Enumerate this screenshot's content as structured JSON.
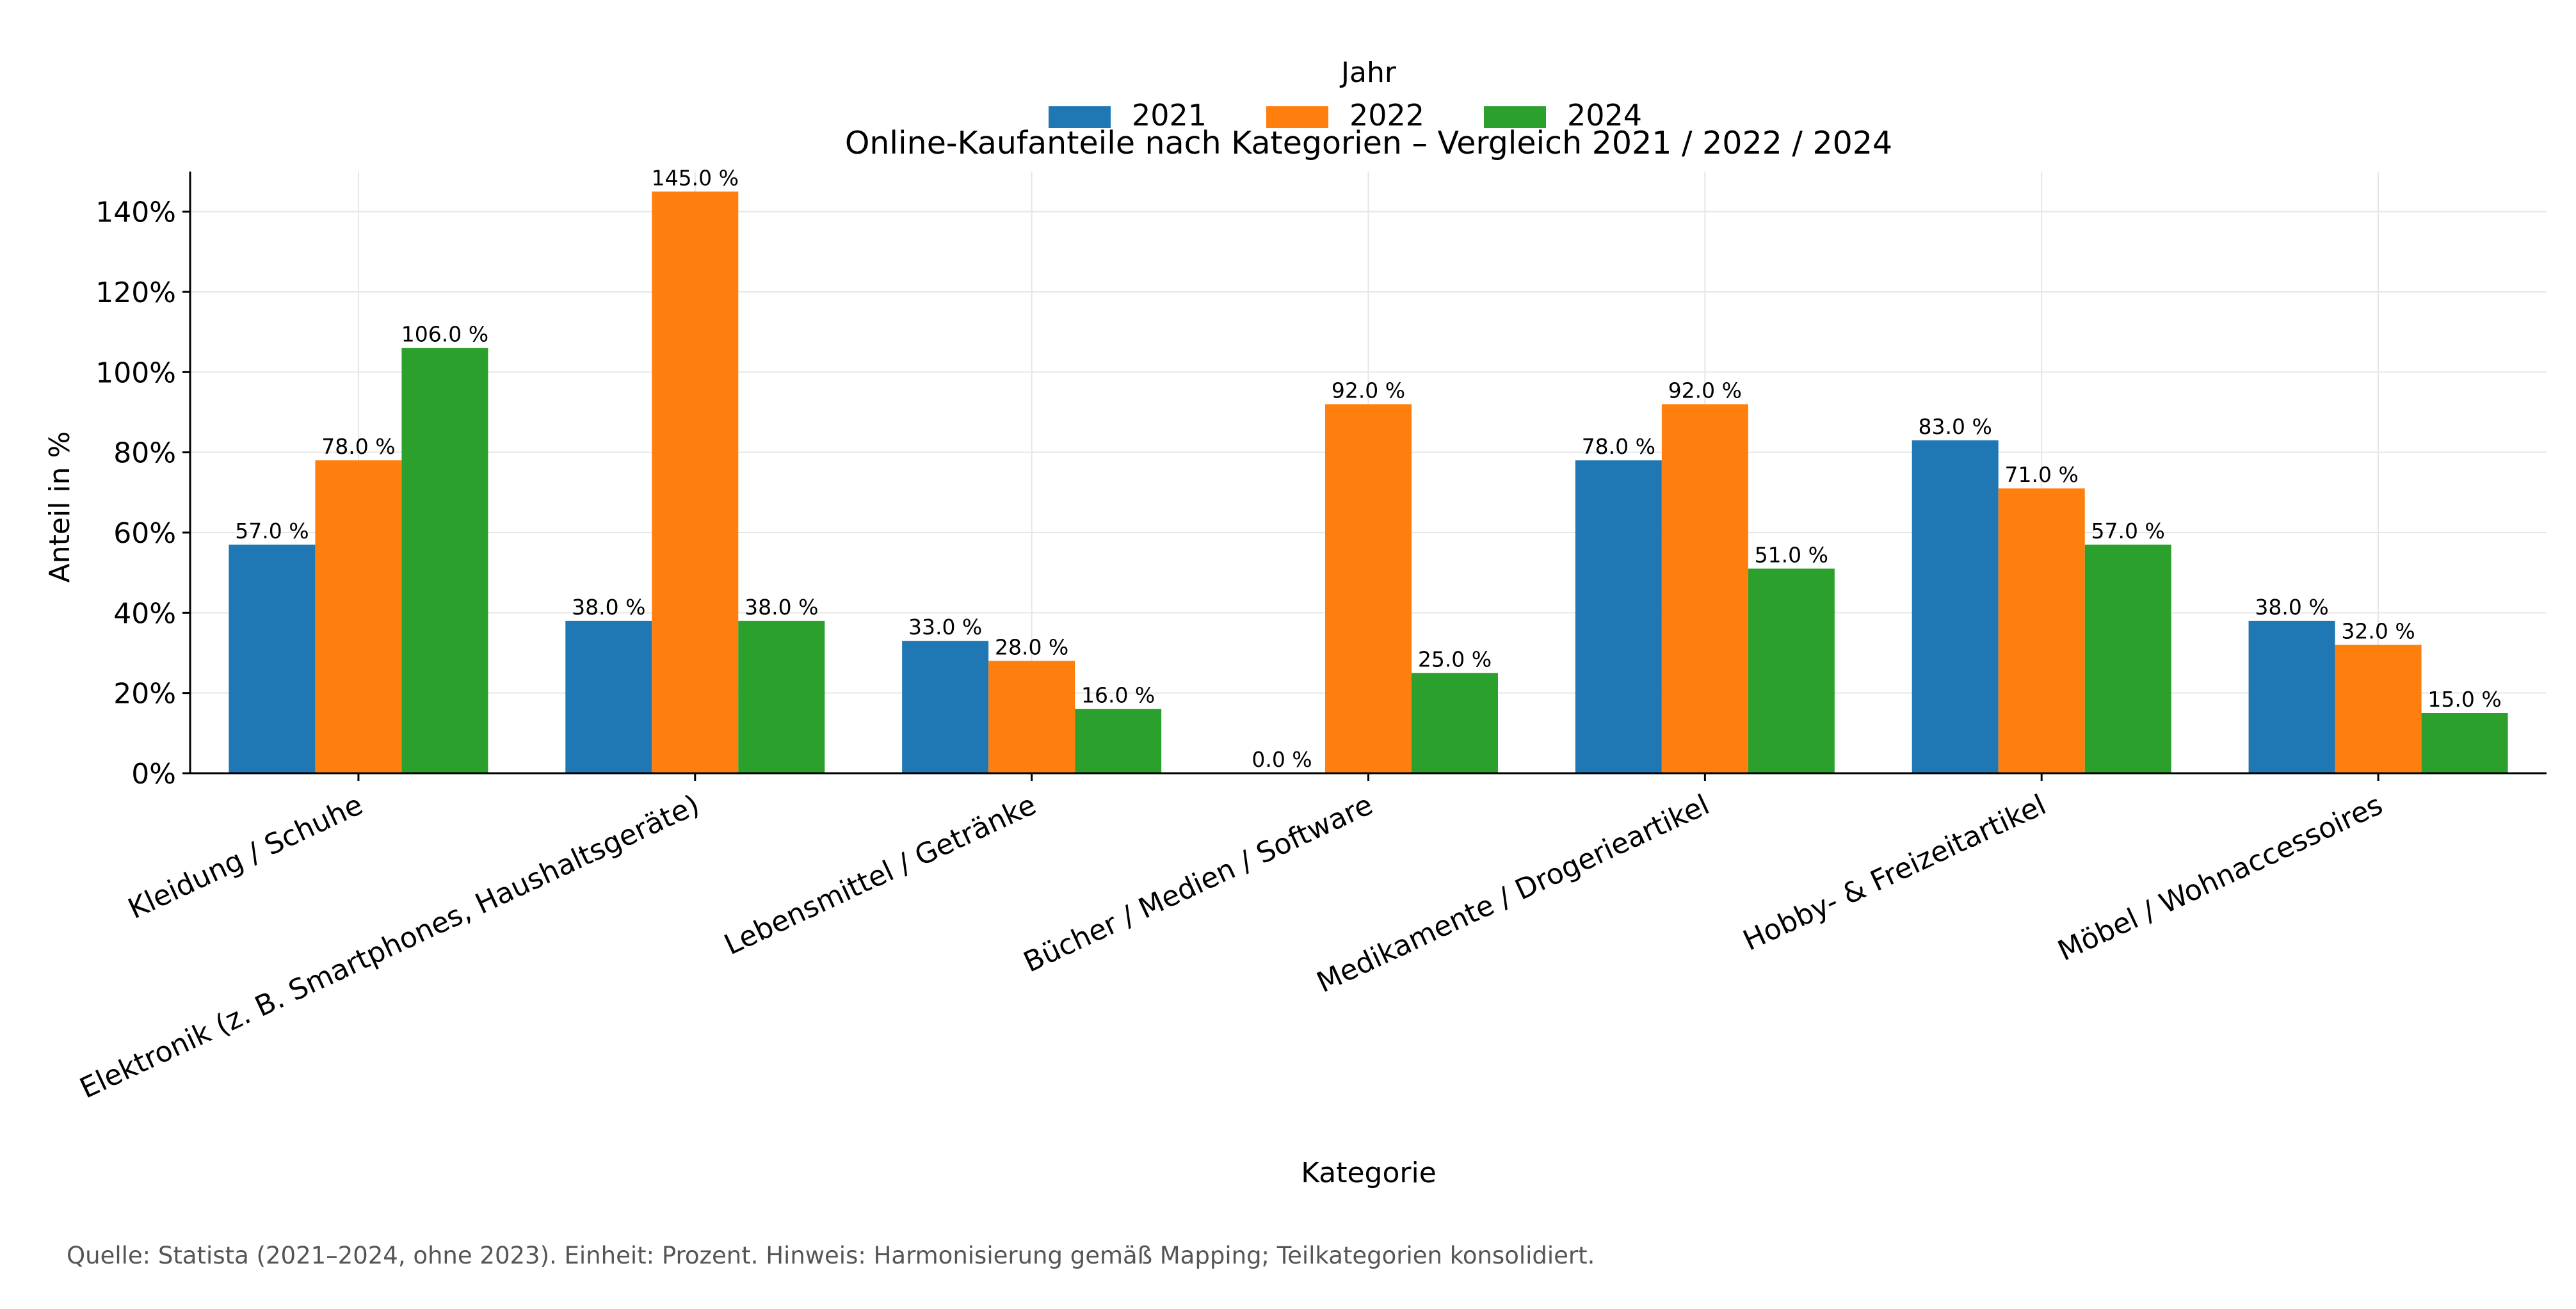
{
  "chart_data": {
    "type": "bar",
    "title": "Online-Kaufanteile nach Kategorien – Vergleich 2021 / 2022 / 2024",
    "xlabel": "Kategorie",
    "ylabel": "Anteil in %",
    "ylim": [
      0,
      150
    ],
    "yticks": [
      0,
      20,
      40,
      60,
      80,
      100,
      120,
      140
    ],
    "ytick_labels": [
      "0%",
      "20%",
      "40%",
      "60%",
      "80%",
      "100%",
      "120%",
      "140%"
    ],
    "grid": true,
    "legend": {
      "title": "Jahr",
      "placement": "top-center"
    },
    "categories": [
      "Kleidung / Schuhe",
      "Elektronik (z. B. Smartphones, Haushaltsgeräte)",
      "Lebensmittel / Getränke",
      "Bücher / Medien / Software",
      "Medikamente / Drogerieartikel",
      "Hobby- & Freizeitartikel",
      "Möbel / Wohnaccessoires"
    ],
    "series": [
      {
        "name": "2021",
        "color": "#1f77b4",
        "values": [
          57,
          38,
          33,
          0,
          78,
          83,
          38
        ],
        "labels": [
          "57.0 %",
          "38.0 %",
          "33.0 %",
          "0.0 %",
          "78.0 %",
          "83.0 %",
          "38.0 %"
        ]
      },
      {
        "name": "2022",
        "color": "#ff7f0e",
        "values": [
          78,
          145,
          28,
          92,
          92,
          71,
          32
        ],
        "labels": [
          "78.0 %",
          "145.0 %",
          "28.0 %",
          "92.0 %",
          "92.0 %",
          "71.0 %",
          "32.0 %"
        ]
      },
      {
        "name": "2024",
        "color": "#2ca02c",
        "values": [
          106,
          38,
          16,
          25,
          51,
          57,
          15
        ],
        "labels": [
          "106.0 %",
          "38.0 %",
          "16.0 %",
          "25.0 %",
          "51.0 %",
          "57.0 %",
          "15.0 %"
        ]
      }
    ]
  },
  "footer": {
    "source": "Quelle: Statista (2021–2024, ohne 2023). Einheit: Prozent. Hinweis: Harmonisierung gemäß Mapping; Teilkategorien konsolidiert."
  }
}
